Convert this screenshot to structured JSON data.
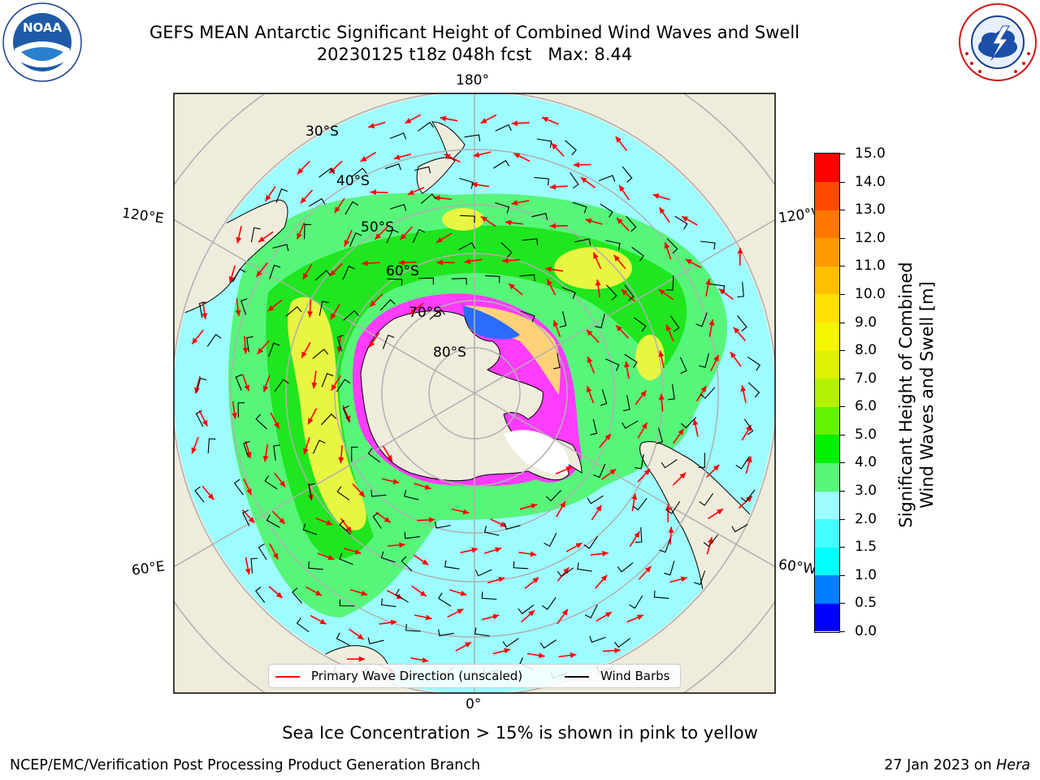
{
  "header": {
    "title_line1": "GEFS MEAN Antarctic Significant Height of Combined Wind Waves and Swell",
    "title_line2": "20230125 t18z 048h fcst   Max: 8.44"
  },
  "logos": {
    "noaa_text": "NOAA",
    "noaa_ring_text": "NATIONAL OCEANIC AND ATMOSPHERIC ADMINISTRATION · U.S. DEPARTMENT OF COMMERCE",
    "nws_ring_text": "NATIONAL WEATHER SERVICE"
  },
  "map": {
    "longitude_labels": {
      "top": "180°",
      "bottom": "0°",
      "upper_left": "120°E",
      "lower_left": "60°E",
      "upper_right": "120°W",
      "lower_right": "60°W"
    },
    "latitude_labels": [
      "30°S",
      "40°S",
      "50°S",
      "60°S",
      "70°S",
      "80°S"
    ],
    "colors": {
      "land": "#efecdc",
      "ocean_low": "#9dfcff",
      "ocean_green": "#57f57a",
      "ocean_bright_green": "#1fe61f",
      "ocean_yellow": "#e8f542",
      "sea_ice_pink": "#ff3cff",
      "sea_ice_white": "#ffffff",
      "wave_arrow": "#ff0000",
      "wind_barb": "#000000",
      "graticule": "#b0b0b0"
    }
  },
  "colorbar": {
    "tick_labels": [
      "15.0",
      "14.0",
      "13.0",
      "12.0",
      "11.0",
      "10.0",
      "9.0",
      "8.0",
      "7.0",
      "6.0",
      "5.0",
      "4.0",
      "3.0",
      "2.0",
      "1.5",
      "1.0",
      "0.5",
      "0.0"
    ],
    "colors_bottom_to_top": [
      "#0000ff",
      "#0080ff",
      "#00ffff",
      "#44ffff",
      "#9dfcff",
      "#57f57a",
      "#00f000",
      "#63f200",
      "#b2f200",
      "#dcf200",
      "#f5f500",
      "#ffe000",
      "#ffbe00",
      "#ff9900",
      "#ff7700",
      "#ff4a00",
      "#ff0000"
    ],
    "title_line1": "Significant Height of Combined",
    "title_line2": "Wind Waves and Swell [m]"
  },
  "legend": {
    "wave_label": "Primary Wave Direction (unscaled)",
    "barb_label": "Wind Barbs"
  },
  "footer": {
    "subtitle": "Sea Ice Concentration > 15% is shown in pink to yellow",
    "credit": "NCEP/EMC/Verification Post Processing Product Generation Branch",
    "date": "27 Jan 2023 on ",
    "machine": "Hera"
  }
}
